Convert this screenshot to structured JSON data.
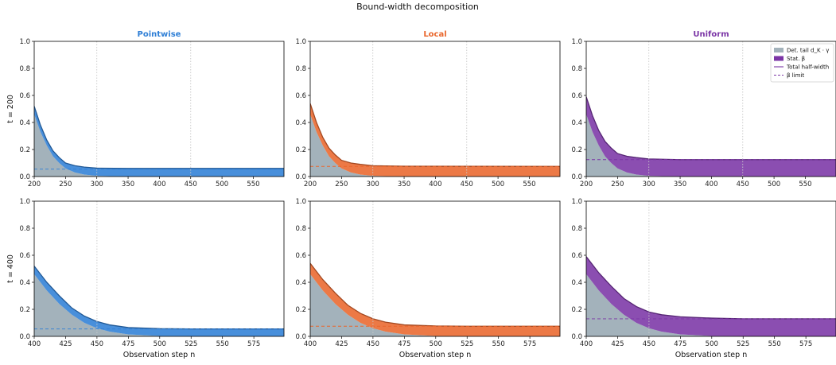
{
  "figure": {
    "title": "Bound-width decomposition"
  },
  "colors": {
    "deterministic_tail": "#a3b2bb",
    "pointwise": "#2f7fd6",
    "local": "#e9662c",
    "uniform": "#7b35a6",
    "vline": "#c8c8c8"
  },
  "legend": {
    "items": [
      "Det. tail d_K · γ",
      "Stat. β",
      "Total half-width",
      "β limit"
    ],
    "placement": "upper-right of top-right panel"
  },
  "chart_data": [
    {
      "type": "area",
      "row": "t = 200",
      "column": "Pointwise",
      "title": "Pointwise",
      "ylabel": "t = 200",
      "xlabel": "",
      "xlim": [
        200,
        599
      ],
      "ylim": [
        0,
        1.0
      ],
      "xticks": [
        200,
        250,
        300,
        350,
        400,
        450,
        500,
        550
      ],
      "yticks": [
        0.0,
        0.2,
        0.4,
        0.6,
        0.8,
        1.0
      ],
      "vlines": [
        300,
        450
      ],
      "series": [
        {
          "name": "Det. tail d_K · γ",
          "x": [
            200,
            210,
            220,
            230,
            240,
            250,
            265,
            280,
            300,
            350,
            599
          ],
          "values": [
            0.46,
            0.33,
            0.23,
            0.15,
            0.1,
            0.06,
            0.03,
            0.015,
            0.005,
            0.0,
            0.0
          ]
        },
        {
          "name": "Total half-width",
          "x": [
            200,
            210,
            220,
            230,
            240,
            250,
            265,
            280,
            300,
            350,
            599
          ],
          "values": [
            0.52,
            0.38,
            0.27,
            0.19,
            0.14,
            0.1,
            0.08,
            0.07,
            0.062,
            0.06,
            0.06
          ]
        },
        {
          "name": "β limit",
          "value": 0.055
        }
      ]
    },
    {
      "type": "area",
      "row": "t = 200",
      "column": "Local",
      "title": "Local",
      "ylabel": "",
      "xlabel": "",
      "xlim": [
        200,
        599
      ],
      "ylim": [
        0,
        1.0
      ],
      "xticks": [
        200,
        250,
        300,
        350,
        400,
        450,
        500,
        550
      ],
      "yticks": [
        0.0,
        0.2,
        0.4,
        0.6,
        0.8,
        1.0
      ],
      "vlines": [
        300,
        450
      ],
      "series": [
        {
          "name": "Det. tail d_K · γ",
          "x": [
            200,
            210,
            220,
            230,
            240,
            250,
            265,
            280,
            300,
            350,
            599
          ],
          "values": [
            0.46,
            0.33,
            0.23,
            0.15,
            0.1,
            0.06,
            0.03,
            0.015,
            0.005,
            0.0,
            0.0
          ]
        },
        {
          "name": "Total half-width",
          "x": [
            200,
            210,
            220,
            230,
            240,
            250,
            265,
            280,
            300,
            350,
            599
          ],
          "values": [
            0.54,
            0.4,
            0.29,
            0.21,
            0.16,
            0.12,
            0.1,
            0.09,
            0.08,
            0.076,
            0.075
          ]
        },
        {
          "name": "β limit",
          "value": 0.075
        }
      ]
    },
    {
      "type": "area",
      "row": "t = 200",
      "column": "Uniform",
      "title": "Uniform",
      "ylabel": "",
      "xlabel": "",
      "xlim": [
        200,
        599
      ],
      "ylim": [
        0,
        1.0
      ],
      "xticks": [
        200,
        250,
        300,
        350,
        400,
        450,
        500,
        550
      ],
      "yticks": [
        0.0,
        0.2,
        0.4,
        0.6,
        0.8,
        1.0
      ],
      "vlines": [
        300,
        450
      ],
      "series": [
        {
          "name": "Det. tail d_K · γ",
          "x": [
            200,
            210,
            220,
            230,
            240,
            250,
            265,
            280,
            300,
            350,
            599
          ],
          "values": [
            0.46,
            0.33,
            0.23,
            0.15,
            0.1,
            0.06,
            0.03,
            0.015,
            0.005,
            0.0,
            0.0
          ]
        },
        {
          "name": "Total half-width",
          "x": [
            200,
            210,
            220,
            230,
            240,
            250,
            265,
            280,
            300,
            350,
            599
          ],
          "values": [
            0.59,
            0.45,
            0.34,
            0.26,
            0.21,
            0.17,
            0.15,
            0.14,
            0.13,
            0.125,
            0.125
          ]
        },
        {
          "name": "β limit",
          "value": 0.125
        }
      ]
    },
    {
      "type": "area",
      "row": "t = 400",
      "column": "Pointwise",
      "title": "",
      "ylabel": "t = 400",
      "xlabel": "Observation step  n",
      "xlim": [
        400,
        599
      ],
      "ylim": [
        0,
        1.0
      ],
      "xticks": [
        400,
        425,
        450,
        475,
        500,
        525,
        550,
        575
      ],
      "yticks": [
        0.0,
        0.2,
        0.4,
        0.6,
        0.8,
        1.0
      ],
      "vlines": [
        450
      ],
      "series": [
        {
          "name": "Det. tail d_K · γ",
          "x": [
            400,
            410,
            420,
            430,
            440,
            450,
            460,
            475,
            500,
            525,
            599
          ],
          "values": [
            0.46,
            0.34,
            0.24,
            0.16,
            0.1,
            0.06,
            0.035,
            0.015,
            0.003,
            0.0,
            0.0
          ]
        },
        {
          "name": "Total half-width",
          "x": [
            400,
            410,
            420,
            430,
            440,
            450,
            460,
            475,
            500,
            525,
            599
          ],
          "values": [
            0.52,
            0.4,
            0.3,
            0.21,
            0.15,
            0.11,
            0.085,
            0.065,
            0.057,
            0.055,
            0.055
          ]
        },
        {
          "name": "β limit",
          "value": 0.055
        }
      ]
    },
    {
      "type": "area",
      "row": "t = 400",
      "column": "Local",
      "title": "",
      "ylabel": "",
      "xlabel": "Observation step  n",
      "xlim": [
        400,
        599
      ],
      "ylim": [
        0,
        1.0
      ],
      "xticks": [
        400,
        425,
        450,
        475,
        500,
        525,
        550,
        575
      ],
      "yticks": [
        0.0,
        0.2,
        0.4,
        0.6,
        0.8,
        1.0
      ],
      "vlines": [
        450
      ],
      "series": [
        {
          "name": "Det. tail d_K · γ",
          "x": [
            400,
            410,
            420,
            430,
            440,
            450,
            460,
            475,
            500,
            525,
            599
          ],
          "values": [
            0.46,
            0.34,
            0.24,
            0.16,
            0.1,
            0.06,
            0.035,
            0.015,
            0.003,
            0.0,
            0.0
          ]
        },
        {
          "name": "Total half-width",
          "x": [
            400,
            410,
            420,
            430,
            440,
            450,
            460,
            475,
            500,
            525,
            599
          ],
          "values": [
            0.54,
            0.42,
            0.32,
            0.23,
            0.17,
            0.13,
            0.105,
            0.085,
            0.077,
            0.075,
            0.075
          ]
        },
        {
          "name": "β limit",
          "value": 0.075
        }
      ]
    },
    {
      "type": "area",
      "row": "t = 400",
      "column": "Uniform",
      "title": "",
      "ylabel": "",
      "xlabel": "Observation step  n",
      "xlim": [
        400,
        599
      ],
      "ylim": [
        0,
        1.0
      ],
      "xticks": [
        400,
        425,
        450,
        475,
        500,
        525,
        550,
        575
      ],
      "yticks": [
        0.0,
        0.2,
        0.4,
        0.6,
        0.8,
        1.0
      ],
      "vlines": [
        450
      ],
      "series": [
        {
          "name": "Det. tail d_K · γ",
          "x": [
            400,
            410,
            420,
            430,
            440,
            450,
            460,
            475,
            500,
            525,
            599
          ],
          "values": [
            0.46,
            0.34,
            0.24,
            0.16,
            0.1,
            0.06,
            0.035,
            0.015,
            0.003,
            0.0,
            0.0
          ]
        },
        {
          "name": "Total half-width",
          "x": [
            400,
            410,
            420,
            430,
            440,
            450,
            460,
            475,
            500,
            525,
            599
          ],
          "values": [
            0.59,
            0.47,
            0.37,
            0.28,
            0.22,
            0.18,
            0.16,
            0.145,
            0.135,
            0.13,
            0.13
          ]
        },
        {
          "name": "β limit",
          "value": 0.13
        }
      ]
    }
  ]
}
